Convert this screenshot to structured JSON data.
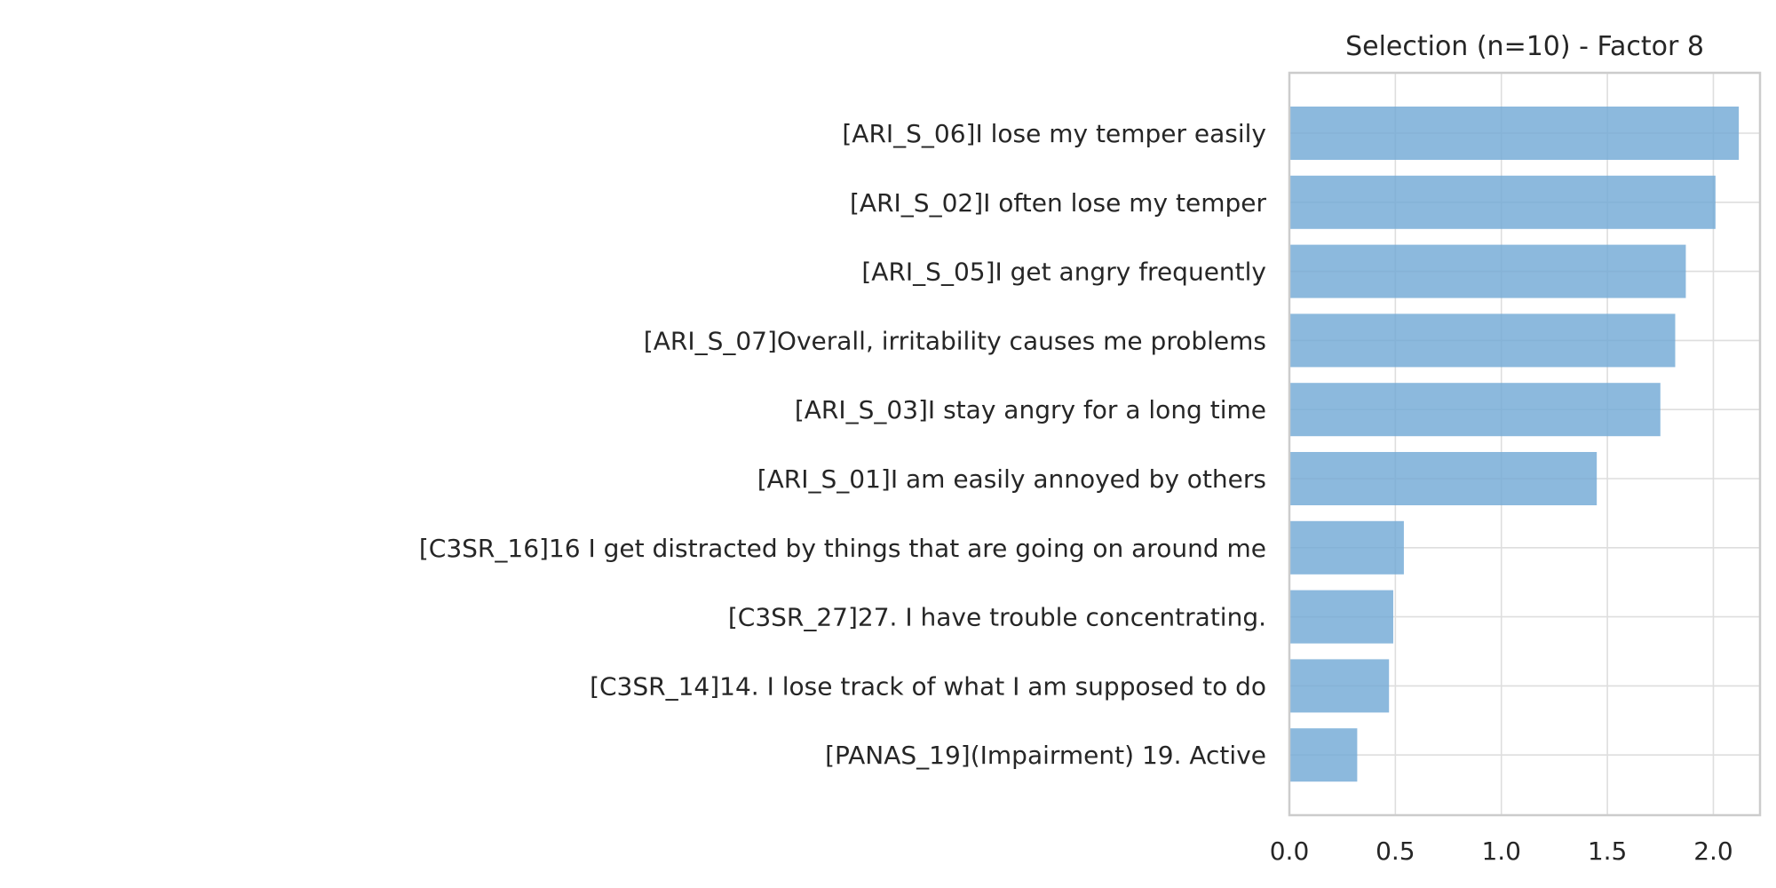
{
  "chart_data": {
    "type": "bar",
    "orientation": "horizontal",
    "title": "Selection (n=10) - Factor 8",
    "xlabel": "",
    "ylabel": "",
    "xlim": [
      0,
      2.22
    ],
    "xticks": [
      0.0,
      0.5,
      1.0,
      1.5,
      2.0
    ],
    "xtick_labels": [
      "0.0",
      "0.5",
      "1.0",
      "1.5",
      "2.0"
    ],
    "grid": true,
    "bar_color": "#6fa8d4",
    "categories": [
      "[ARI_S_06]I lose my temper easily",
      "[ARI_S_02]I often lose my temper",
      "[ARI_S_05]I get angry frequently",
      "[ARI_S_07]Overall, irritability causes me problems",
      "[ARI_S_03]I stay angry for a long time",
      "[ARI_S_01]I am easily annoyed by others",
      "[C3SR_16]16 I get distracted by things that are going on around me",
      "[C3SR_27]27. I have trouble concentrating.",
      "[C3SR_14]14. I lose track of what I am supposed to do",
      "[PANAS_19](Impairment) 19. Active"
    ],
    "values": [
      2.12,
      2.01,
      1.87,
      1.82,
      1.75,
      1.45,
      0.54,
      0.49,
      0.47,
      0.32
    ]
  }
}
